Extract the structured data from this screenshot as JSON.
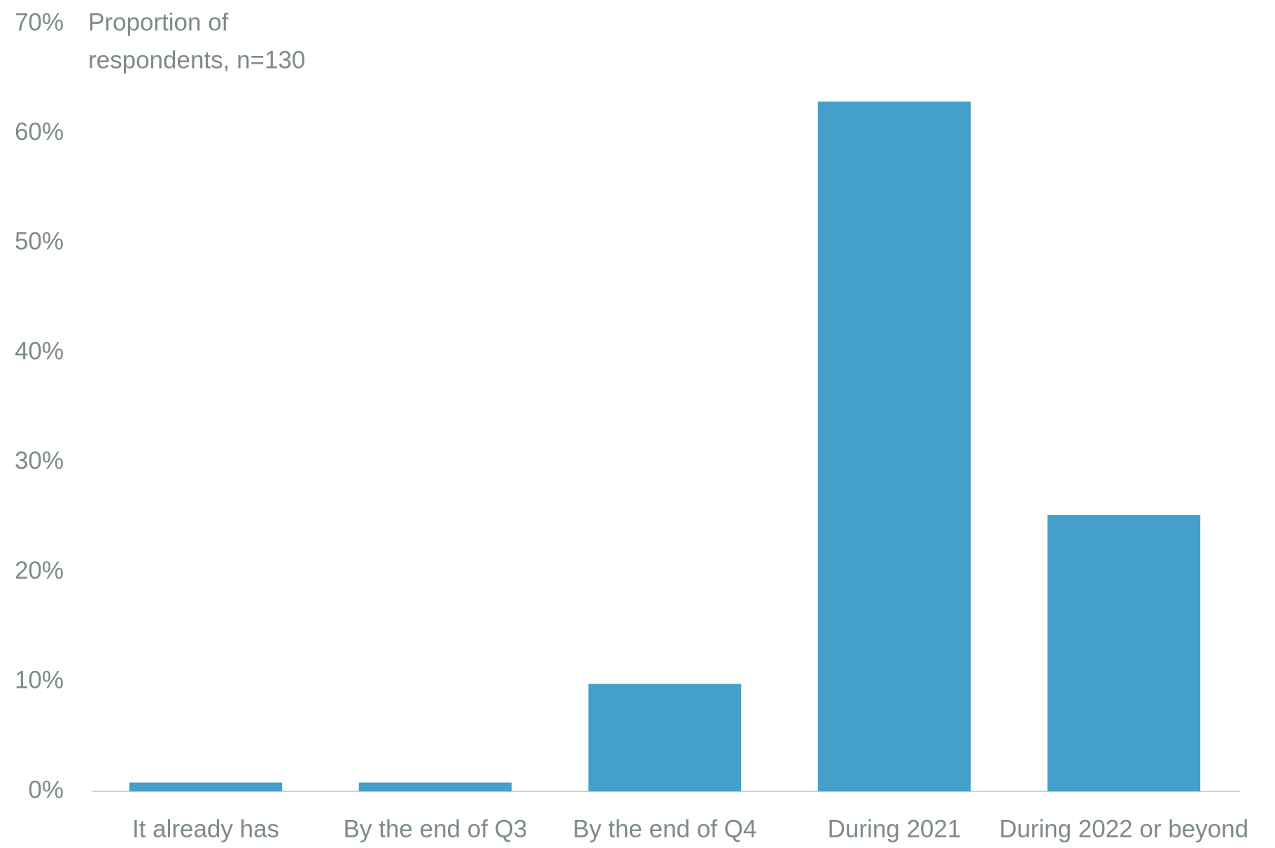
{
  "chart_data": {
    "type": "bar",
    "ylabel": [
      "Proportion of",
      "respondents, n=130"
    ],
    "categories": [
      "It already has",
      "By the end of Q3",
      "By the end of Q4",
      "During 2021",
      "During 2022 or beyond"
    ],
    "values": [
      0.8,
      0.8,
      9.8,
      62.9,
      25.2
    ],
    "color": "#449fcb",
    "ylim": [
      0,
      70
    ],
    "yticks": [
      {
        "value": 0,
        "label": "0%"
      },
      {
        "value": 10,
        "label": "10%"
      },
      {
        "value": 20,
        "label": "20%"
      },
      {
        "value": 30,
        "label": "30%"
      },
      {
        "value": 40,
        "label": "40%"
      },
      {
        "value": 50,
        "label": "50%"
      },
      {
        "value": 60,
        "label": "60%"
      },
      {
        "value": 70,
        "label": "70%"
      }
    ],
    "grid": false
  }
}
